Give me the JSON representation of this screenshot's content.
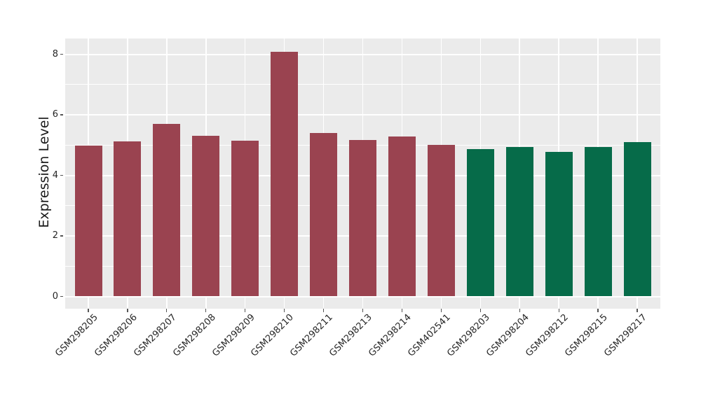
{
  "figure": {
    "background": "#ffffff",
    "panel_background": "#EBEBEB",
    "grid_color": "#ffffff",
    "tick_color": "#555555",
    "text_color": "#262626"
  },
  "chart_data": {
    "type": "bar",
    "title": "",
    "xlabel": "",
    "ylabel": "Expression Level",
    "ylim": [
      0,
      8.5
    ],
    "yticks": [
      0,
      2,
      4,
      6,
      8
    ],
    "yticks_minor": [
      1,
      3,
      5,
      7
    ],
    "grid": "on",
    "legend_position": "none",
    "categories": [
      "GSM298205",
      "GSM298206",
      "GSM298207",
      "GSM298208",
      "GSM298209",
      "GSM298210",
      "GSM298211",
      "GSM298213",
      "GSM298214",
      "GSM402541",
      "GSM298203",
      "GSM298204",
      "GSM298212",
      "GSM298215",
      "GSM298217"
    ],
    "values": [
      4.99,
      5.11,
      5.69,
      5.3,
      5.14,
      8.08,
      5.4,
      5.17,
      5.28,
      5.01,
      4.86,
      4.93,
      4.77,
      4.94,
      5.1
    ],
    "bar_colors": [
      "#9A4350",
      "#9A4350",
      "#9A4350",
      "#9A4350",
      "#9A4350",
      "#9A4350",
      "#9A4350",
      "#9A4350",
      "#9A4350",
      "#9A4350",
      "#066B49",
      "#066B49",
      "#066B49",
      "#066B49",
      "#066B49"
    ],
    "group_colors": {
      "group1": "#9A4350",
      "group2": "#066B49"
    }
  }
}
